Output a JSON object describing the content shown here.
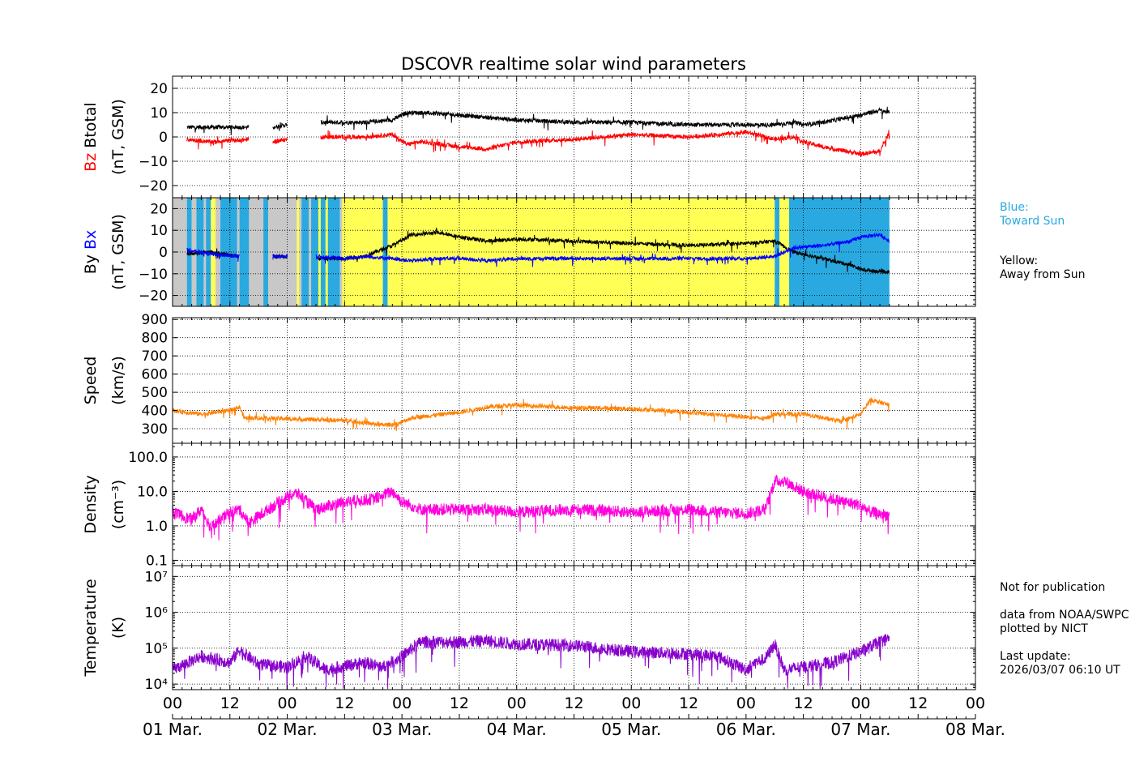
{
  "title": "DSCOVR realtime solar wind parameters",
  "side_notes": {
    "blue_label": "Blue:\nToward Sun",
    "yellow_label": "Yellow:\nAway from Sun",
    "footer": "Not for publication\n\ndata from NOAA/SWPC\nplotted by NICT\n\nLast update:\n2026/03/07 06:10 UT"
  },
  "colors": {
    "bz": "#ff0000",
    "btotal": "#000000",
    "bx": "#0000ff",
    "by": "#000000",
    "speed": "#ff8000",
    "density": "#ff00dd",
    "temperature": "#8800cc",
    "toward": "#2aa9e0",
    "away": "#ffff55",
    "nodata": "#c8c8c8",
    "blue_text": "#2aa9e0"
  },
  "chart_data": {
    "type": "line",
    "x_unit": "hours since 2026-03-01 00:00 UT",
    "xlim": [
      0,
      168
    ],
    "x_ticks": [
      0,
      12,
      24,
      36,
      48,
      60,
      72,
      84,
      96,
      108,
      120,
      132,
      144,
      156,
      168
    ],
    "x_tick_labels": [
      "00",
      "12",
      "00",
      "12",
      "00",
      "12",
      "00",
      "12",
      "00",
      "12",
      "00",
      "12",
      "00",
      "12",
      "00"
    ],
    "day_labels": [
      "01 Mar.",
      "02 Mar.",
      "03 Mar.",
      "04 Mar.",
      "05 Mar.",
      "06 Mar.",
      "07 Mar.",
      "08 Mar."
    ],
    "panels": [
      {
        "id": "mag",
        "ylabel_parts": [
          {
            "text": "Bz",
            "color": "#ff0000"
          },
          {
            "text": "Btotal",
            "color": "#000000"
          }
        ],
        "ylabel2": "(nT, GSM)",
        "ylim": [
          -25,
          25
        ],
        "scale": "linear",
        "yticks": [
          -20,
          -10,
          0,
          10,
          20
        ],
        "ytick_labels": [
          "−20",
          "−10",
          "0",
          "10",
          "20"
        ],
        "series": [
          {
            "name": "Btotal",
            "color": "#000000",
            "x": [
              3,
              8,
              16,
              19,
              21,
              24,
              26,
              31,
              40,
              46,
              49,
              52,
              60,
              66,
              72,
              84,
              96,
              108,
              114,
              120,
              126,
              130,
              132,
              136,
              144,
              148,
              150
            ],
            "y": [
              4,
              4,
              4,
              null,
              4,
              5,
              null,
              6,
              6,
              7,
              10,
              10,
              9,
              8,
              7,
              6,
              6,
              5,
              5,
              5,
              5,
              6,
              5,
              6,
              9,
              11,
              10
            ]
          },
          {
            "name": "Bz",
            "color": "#ff0000",
            "x": [
              3,
              8,
              16,
              19,
              21,
              24,
              26,
              31,
              40,
              46,
              49,
              52,
              60,
              66,
              72,
              84,
              96,
              108,
              114,
              120,
              126,
              130,
              132,
              136,
              144,
              148,
              150
            ],
            "y": [
              -1,
              -2,
              -1,
              null,
              -2,
              -1,
              null,
              0,
              0,
              1,
              -3,
              -2,
              -4,
              -5,
              -2,
              -1,
              1,
              0,
              1,
              2,
              -1,
              0,
              -2,
              -4,
              -7,
              -6,
              2
            ]
          }
        ]
      },
      {
        "id": "imf",
        "ylabel_parts": [
          {
            "text": "By",
            "color": "#000000"
          },
          {
            "text": "Bx",
            "color": "#0000ff"
          }
        ],
        "ylabel2": "(nT, GSM)",
        "ylim": [
          -25,
          25
        ],
        "scale": "linear",
        "yticks": [
          -20,
          -10,
          0,
          10,
          20
        ],
        "ytick_labels": [
          "−20",
          "−10",
          "0",
          "10",
          "20"
        ],
        "sectors": [
          {
            "from": 0,
            "to": 3,
            "state": "nodata"
          },
          {
            "from": 3,
            "to": 4,
            "state": "toward"
          },
          {
            "from": 4,
            "to": 5,
            "state": "nodata"
          },
          {
            "from": 5,
            "to": 14,
            "state": "mixed"
          },
          {
            "from": 14,
            "to": 16,
            "state": "toward"
          },
          {
            "from": 16,
            "to": 19,
            "state": "nodata"
          },
          {
            "from": 19,
            "to": 20,
            "state": "toward"
          },
          {
            "from": 20,
            "to": 26,
            "state": "nodata"
          },
          {
            "from": 26,
            "to": 36,
            "state": "mixed"
          },
          {
            "from": 36,
            "to": 44,
            "state": "away"
          },
          {
            "from": 44,
            "to": 45,
            "state": "toward"
          },
          {
            "from": 45,
            "to": 126,
            "state": "away"
          },
          {
            "from": 126,
            "to": 127,
            "state": "toward"
          },
          {
            "from": 127,
            "to": 129,
            "state": "away"
          },
          {
            "from": 129,
            "to": 150,
            "state": "toward"
          }
        ],
        "series": [
          {
            "name": "By",
            "color": "#000000",
            "x": [
              3,
              8,
              14,
              19,
              21,
              24,
              26,
              30,
              36,
              40,
              46,
              50,
              56,
              60,
              66,
              72,
              84,
              96,
              108,
              120,
              126,
              130,
              136,
              142,
              144,
              148,
              150
            ],
            "y": [
              -1,
              0,
              -2,
              null,
              -2,
              -2,
              null,
              -3,
              -3,
              -2,
              3,
              8,
              9,
              7,
              5,
              6,
              5,
              4,
              3,
              4,
              5,
              0,
              -3,
              -6,
              -8,
              -9,
              -9
            ]
          },
          {
            "name": "Bx",
            "color": "#0000ff",
            "x": [
              3,
              8,
              14,
              19,
              21,
              24,
              26,
              30,
              36,
              40,
              46,
              50,
              56,
              60,
              66,
              72,
              84,
              96,
              108,
              120,
              126,
              130,
              136,
              142,
              144,
              148,
              150
            ],
            "y": [
              1,
              -1,
              -2,
              null,
              -2,
              -2,
              null,
              -2,
              -3,
              -2,
              -3,
              -4,
              -3,
              -3,
              -4,
              -3,
              -3,
              -3,
              -3,
              -3,
              -2,
              2,
              3,
              5,
              7,
              8,
              5
            ]
          }
        ]
      },
      {
        "id": "speed",
        "ylabel_parts": [
          {
            "text": "Speed",
            "color": "#000000"
          }
        ],
        "ylabel2": "(km/s)",
        "ylim": [
          220,
          910
        ],
        "scale": "linear",
        "yticks": [
          300,
          400,
          500,
          600,
          700,
          800,
          900
        ],
        "ytick_labels": [
          "300",
          "400",
          "500",
          "600",
          "700",
          "800",
          "900"
        ],
        "series": [
          {
            "name": "Speed",
            "color": "#ff8000",
            "x": [
              0,
              6,
              12,
              14,
              15,
              24,
              36,
              44,
              47,
              50,
              60,
              66,
              72,
              84,
              96,
              108,
              120,
              124,
              126,
              132,
              138,
              140,
              144,
              146,
              150
            ],
            "y": [
              400,
              380,
              400,
              420,
              360,
              355,
              345,
              320,
              325,
              360,
              390,
              420,
              430,
              415,
              410,
              390,
              365,
              355,
              380,
              380,
              350,
              340,
              380,
              460,
              430
            ]
          }
        ]
      },
      {
        "id": "density",
        "ylabel_parts": [
          {
            "text": "Density",
            "color": "#000000"
          }
        ],
        "ylabel2": "(cm⁻³)",
        "ylim": [
          0.07,
          250
        ],
        "scale": "log",
        "yticks": [
          0.1,
          1.0,
          10.0,
          100.0
        ],
        "ytick_labels": [
          "0.1",
          "1.0",
          "10.0",
          "100.0"
        ],
        "series": [
          {
            "name": "Density",
            "color": "#ff00dd",
            "x": [
              0,
              4,
              6,
              8,
              12,
              14,
              16,
              20,
              24,
              26,
              30,
              36,
              42,
              46,
              48,
              52,
              60,
              66,
              72,
              84,
              96,
              108,
              114,
              120,
              124,
              126,
              128,
              132,
              138,
              144,
              146,
              150
            ],
            "y": [
              2.5,
              1.5,
              3,
              0.9,
              2.5,
              3,
              1.2,
              3,
              7,
              9,
              3,
              5,
              6,
              10,
              5,
              3,
              3,
              3,
              2.5,
              3,
              2.5,
              3,
              2.5,
              2.3,
              3,
              20,
              20,
              10,
              6,
              4,
              2.5,
              2
            ]
          }
        ]
      },
      {
        "id": "temperature",
        "ylabel_parts": [
          {
            "text": "Temperature",
            "color": "#000000"
          }
        ],
        "ylabel2": "(K)",
        "ylim": [
          7000,
          20000000
        ],
        "scale": "log",
        "yticks": [
          10000,
          100000,
          1000000,
          10000000
        ],
        "ytick_labels": [
          "10⁴",
          "10⁵",
          "10⁶",
          "10⁷"
        ],
        "series": [
          {
            "name": "Temperature",
            "color": "#8800cc",
            "x": [
              0,
              6,
              12,
              14,
              18,
              24,
              28,
              32,
              40,
              44,
              48,
              52,
              60,
              66,
              72,
              84,
              96,
              108,
              114,
              120,
              122,
              124,
              126,
              128,
              132,
              138,
              144,
              148,
              150
            ],
            "y": [
              25000,
              60000,
              40000,
              90000,
              35000,
              30000,
              60000,
              25000,
              40000,
              30000,
              60000,
              150000,
              150000,
              160000,
              130000,
              120000,
              80000,
              70000,
              60000,
              25000,
              40000,
              50000,
              130000,
              25000,
              30000,
              40000,
              80000,
              150000,
              190000
            ]
          }
        ]
      }
    ]
  }
}
